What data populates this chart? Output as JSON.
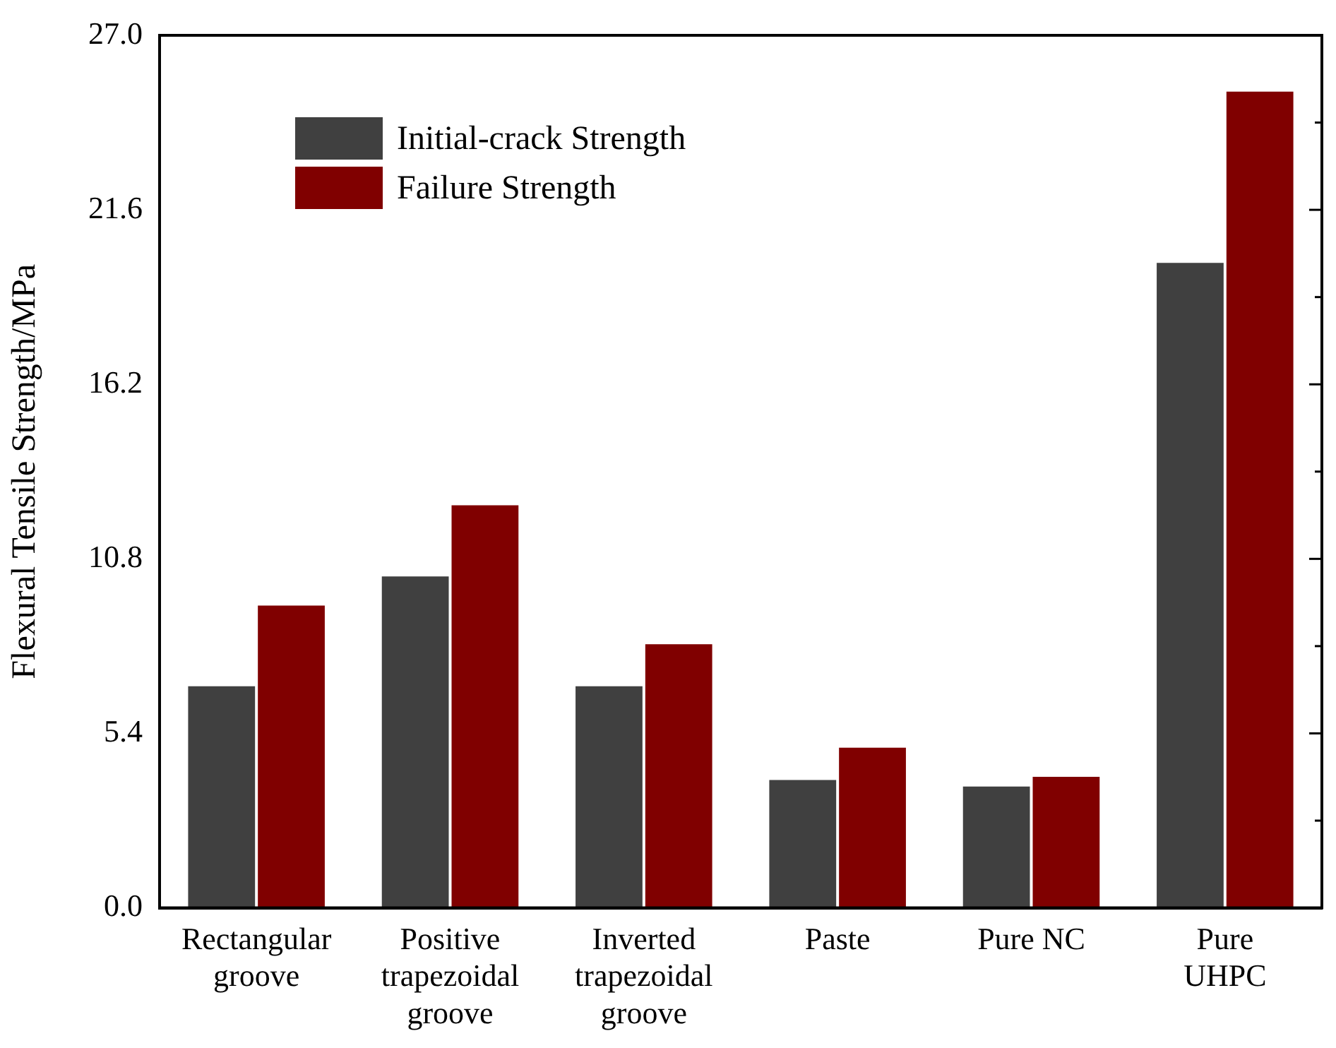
{
  "chart_data": {
    "type": "bar",
    "ylabel": "Flexural Tensile Strength/MPa",
    "categories": [
      "Rectangular\ngroove",
      "Positive\ntrapezoidal\ngroove",
      "Inverted\ntrapezoidal\ngroove",
      "Paste",
      "Pure NC",
      "Pure\nUHPC"
    ],
    "series": [
      {
        "name": "Initial-crack Strength",
        "color": "#404040",
        "values": [
          6.9,
          10.3,
          6.9,
          4.0,
          3.8,
          20.0
        ]
      },
      {
        "name": "Failure Strength",
        "color": "#800000",
        "values": [
          9.4,
          12.5,
          8.2,
          5.0,
          4.1,
          25.3
        ]
      }
    ],
    "ylim": [
      0,
      27
    ],
    "yticks": [
      {
        "value": 0,
        "label": "0.0"
      },
      {
        "value": 2.7,
        "label": null
      },
      {
        "value": 5.4,
        "label": "5.4"
      },
      {
        "value": 8.1,
        "label": null
      },
      {
        "value": 10.8,
        "label": "10.8"
      },
      {
        "value": 13.5,
        "label": null
      },
      {
        "value": 16.2,
        "label": "16.2"
      },
      {
        "value": 18.9,
        "label": null
      },
      {
        "value": 21.6,
        "label": "21.6"
      },
      {
        "value": 24.3,
        "label": null
      },
      {
        "value": 27,
        "label": "27.0"
      }
    ],
    "grid": false,
    "legend": "top left"
  }
}
